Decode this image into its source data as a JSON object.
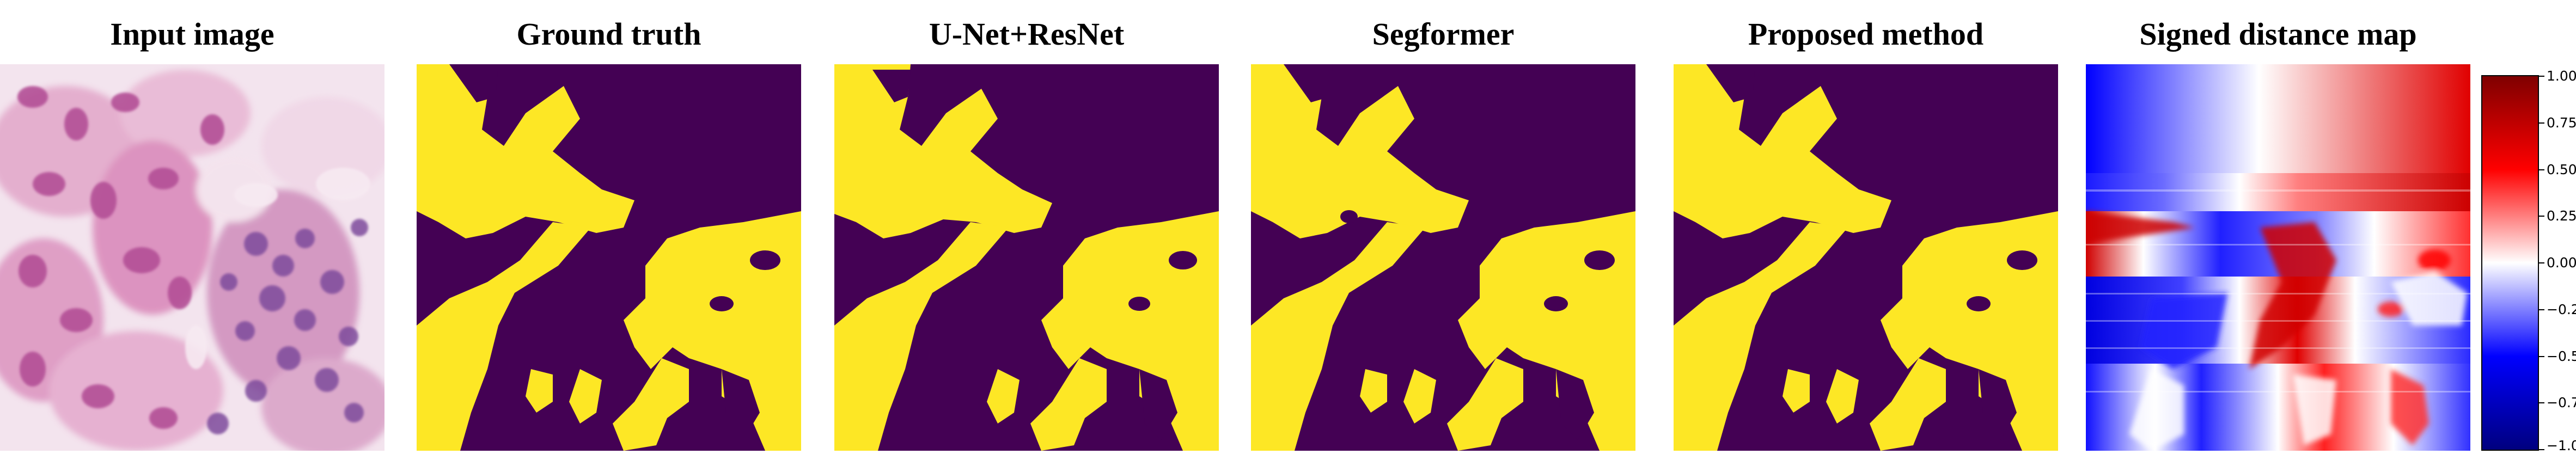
{
  "panels": [
    {
      "title": "Input image"
    },
    {
      "title": "Ground truth"
    },
    {
      "title": "U-Net+ResNet"
    },
    {
      "title": "Segformer"
    },
    {
      "title": "Proposed method"
    },
    {
      "title": "Signed distance map"
    }
  ],
  "colorbar": {
    "ticks": [
      "1.00",
      "0.75",
      "0.50",
      "0.25",
      "0.00",
      "−0.25",
      "−0.50",
      "−0.75",
      "−1.00"
    ],
    "colormap": [
      "#00007f",
      "#0000ff",
      "#ffffff",
      "#ff0000",
      "#7f0000"
    ]
  },
  "colors": {
    "mask_background": "#440154",
    "mask_foreground": "#fde725",
    "tissue_light": "#f1dde9",
    "tissue_stain": "#d56aa8",
    "nuclei": "#8d4f9e"
  }
}
